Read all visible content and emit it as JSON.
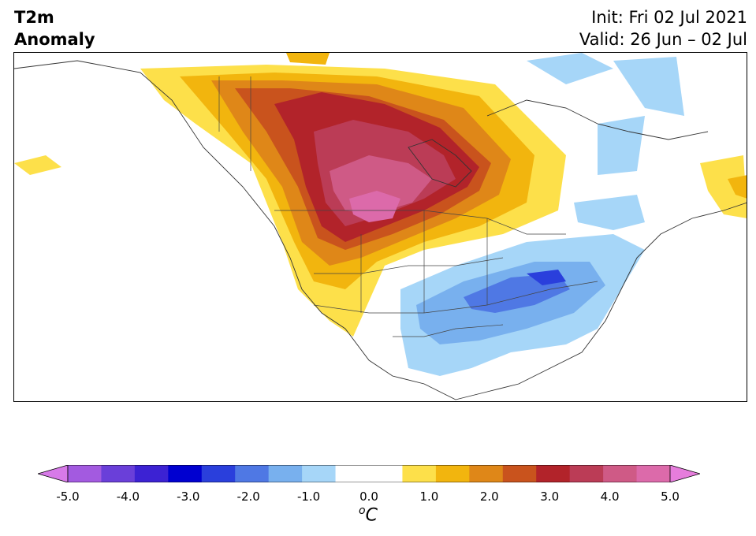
{
  "header": {
    "variable": "T2m",
    "field": "Anomaly",
    "init": "Init: Fri 02 Jul 2021",
    "valid": "Valid: 26 Jun – 02 Jul"
  },
  "map": {
    "region": "North America",
    "field_levels_degC": {
      "warm_core_max": 5.0,
      "cold_core_min": -3.0
    }
  },
  "colorbar": {
    "unit_sup": "o",
    "unit": "C",
    "ticks": [
      "-5.0",
      "-4.0",
      "-3.0",
      "-2.0",
      "-1.0",
      "0.0",
      "1.0",
      "2.0",
      "3.0",
      "4.0",
      "5.0"
    ],
    "colors": [
      "#a35ae0",
      "#6a3fd9",
      "#3c22d3",
      "#0000d0",
      "#2a3fdc",
      "#4f78e4",
      "#78b0ee",
      "#a6d6f8",
      "#ffffff",
      "#ffffff",
      "#fde04a",
      "#f2b50e",
      "#df8718",
      "#c9531d",
      "#b2232a",
      "#bb3c56",
      "#cf5a86",
      "#dc6aaa"
    ],
    "extend_min_color": "#d77ae8",
    "extend_max_color": "#e67ddc"
  }
}
